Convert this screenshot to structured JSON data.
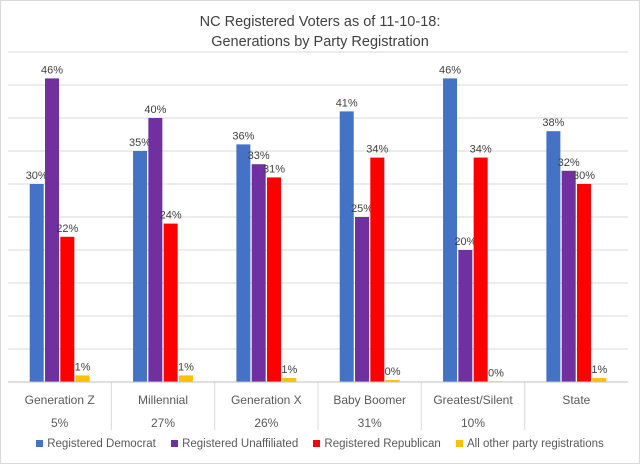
{
  "chart_data": {
    "type": "bar",
    "title_lines": [
      "NC Registered Voters as of 11-10-18:",
      "Generations by Party Registration"
    ],
    "categories": [
      "Generation Z",
      "Millennial",
      "Generation X",
      "Baby Boomer",
      "Greatest/Silent",
      "State"
    ],
    "category_shares": [
      "5%",
      "27%",
      "26%",
      "31%",
      "10%",
      ""
    ],
    "series": [
      {
        "name": "Registered Democrat",
        "color": "#4472C4",
        "values": [
          30,
          35,
          36,
          41,
          46,
          38
        ],
        "labels": [
          "30%",
          "35%",
          "36%",
          "41%",
          "46%",
          "38%"
        ]
      },
      {
        "name": "Registered Unaffiliated",
        "color": "#7030A0",
        "values": [
          46,
          40,
          33,
          25,
          20,
          32
        ],
        "labels": [
          "46%",
          "40%",
          "33%",
          "25%",
          "20%",
          "32%"
        ]
      },
      {
        "name": "Registered Republican",
        "color": "#FF0000",
        "values": [
          22,
          24,
          31,
          34,
          34,
          30
        ],
        "labels": [
          "22%",
          "24%",
          "31%",
          "34%",
          "34%",
          "30%"
        ]
      },
      {
        "name": "All other party registrations",
        "color": "#FFC000",
        "values": [
          1,
          1,
          0.6,
          0.3,
          0.1,
          0.6
        ],
        "labels": [
          "1%",
          "1%",
          "1%",
          "0%",
          "0%",
          "1%"
        ]
      }
    ],
    "ylim": [
      0,
      50
    ],
    "grid": true,
    "legend_position": "bottom"
  }
}
